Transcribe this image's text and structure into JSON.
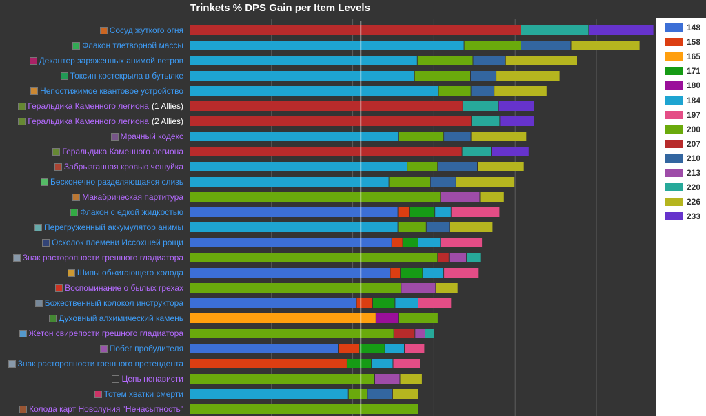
{
  "chart_data": {
    "type": "bar",
    "title": "Trinkets % DPS Gain per Item Levels",
    "xlabel": "",
    "ylabel": "",
    "xlim": [
      0,
      11
    ],
    "legend_position": "right",
    "item_levels": [
      "148",
      "158",
      "165",
      "171",
      "180",
      "184",
      "197",
      "200",
      "207",
      "210",
      "213",
      "220",
      "226",
      "233"
    ],
    "colors": {
      "148": "#3c6fd6",
      "158": "#dc3e12",
      "165": "#ff9f0e",
      "171": "#169b15",
      "180": "#9a0f9a",
      "184": "#1ea4d1",
      "197": "#e44d86",
      "200": "#6aaa0c",
      "207": "#b82b2b",
      "210": "#3366a0",
      "213": "#9e4ca8",
      "220": "#27a99a",
      "226": "#b5b51f",
      "233": "#6633cc"
    },
    "items": [
      {
        "name": "Сосуд жуткого огня",
        "epic": false,
        "icon_color": "#cc6622",
        "segments": [
          [
            "207",
            8.15
          ],
          [
            "220",
            1.67
          ],
          [
            "233",
            1.6
          ]
        ]
      },
      {
        "name": "Флакон тлетворной массы",
        "epic": false,
        "icon_color": "#33aa55",
        "segments": [
          [
            "184",
            6.75
          ],
          [
            "200",
            1.4
          ],
          [
            "210",
            1.23
          ],
          [
            "226",
            1.7
          ]
        ]
      },
      {
        "name": "Декантер заряженных анимой ветров",
        "epic": false,
        "icon_color": "#aa2266",
        "segments": [
          [
            "184",
            5.6
          ],
          [
            "200",
            1.37
          ],
          [
            "210",
            0.8
          ],
          [
            "226",
            1.77
          ]
        ]
      },
      {
        "name": "Токсин костекрыла в бутылке",
        "epic": false,
        "icon_color": "#229955",
        "segments": [
          [
            "184",
            5.53
          ],
          [
            "200",
            1.38
          ],
          [
            "210",
            0.63
          ],
          [
            "226",
            1.57
          ]
        ]
      },
      {
        "name": "Непостижимое квантовое устройство",
        "epic": false,
        "icon_color": "#cc8833",
        "segments": [
          [
            "184",
            6.12
          ],
          [
            "200",
            0.8
          ],
          [
            "210",
            0.57
          ],
          [
            "226",
            1.3
          ]
        ]
      },
      {
        "name": "Геральдика Каменного легиона",
        "suffix": "(1 Allies)",
        "epic": true,
        "icon_color": "#668833",
        "segments": [
          [
            "207",
            6.72
          ],
          [
            "220",
            0.88
          ],
          [
            "233",
            0.88
          ]
        ]
      },
      {
        "name": "Геральдика Каменного легиона",
        "suffix": "(2 Allies)",
        "epic": true,
        "icon_color": "#668833",
        "segments": [
          [
            "207",
            6.93
          ],
          [
            "220",
            0.7
          ],
          [
            "233",
            0.85
          ]
        ]
      },
      {
        "name": "Мрачный кодекс",
        "epic": true,
        "icon_color": "#775588",
        "segments": [
          [
            "184",
            5.13
          ],
          [
            "200",
            1.12
          ],
          [
            "210",
            0.67
          ],
          [
            "226",
            1.37
          ]
        ]
      },
      {
        "name": "Геральдика Каменного легиона",
        "epic": true,
        "icon_color": "#668833",
        "segments": [
          [
            "207",
            6.7
          ],
          [
            "220",
            0.72
          ],
          [
            "233",
            0.93
          ]
        ]
      },
      {
        "name": "Забрызганная кровью чешуйка",
        "epic": true,
        "icon_color": "#aa4433",
        "segments": [
          [
            "184",
            5.35
          ],
          [
            "200",
            0.75
          ],
          [
            "210",
            0.98
          ],
          [
            "226",
            1.15
          ]
        ]
      },
      {
        "name": "Бесконечно разделяющаяся слизь",
        "epic": false,
        "icon_color": "#55bb66",
        "segments": [
          [
            "184",
            4.9
          ],
          [
            "200",
            1.02
          ],
          [
            "210",
            0.63
          ],
          [
            "226",
            1.45
          ]
        ]
      },
      {
        "name": "Макабрическая партитура",
        "epic": true,
        "icon_color": "#bb7733",
        "segments": [
          [
            "200",
            6.17
          ],
          [
            "213",
            0.97
          ],
          [
            "226",
            0.6
          ]
        ]
      },
      {
        "name": "Флакон с едкой жидкостью",
        "epic": false,
        "icon_color": "#33aa44",
        "segments": [
          [
            "148",
            5.12
          ],
          [
            "158",
            0.28
          ],
          [
            "171",
            0.63
          ],
          [
            "184",
            0.4
          ],
          [
            "197",
            1.2
          ]
        ]
      },
      {
        "name": "Перегруженный аккумулятор анимы",
        "epic": false,
        "icon_color": "#66aaaa",
        "segments": [
          [
            "184",
            5.12
          ],
          [
            "200",
            0.7
          ],
          [
            "210",
            0.57
          ],
          [
            "226",
            1.07
          ]
        ]
      },
      {
        "name": "Осколок племени Иссохшей рощи",
        "epic": false,
        "icon_color": "#334477",
        "segments": [
          [
            "148",
            4.97
          ],
          [
            "158",
            0.27
          ],
          [
            "171",
            0.38
          ],
          [
            "184",
            0.55
          ],
          [
            "197",
            1.03
          ]
        ]
      },
      {
        "name": "Знак расторопности грешного гладиатора",
        "epic": true,
        "icon_color": "#8899aa",
        "segments": [
          [
            "200",
            6.1
          ],
          [
            "207",
            0.28
          ],
          [
            "213",
            0.43
          ],
          [
            "220",
            0.35
          ]
        ]
      },
      {
        "name": "Шипы обжигающего холода",
        "epic": false,
        "icon_color": "#cc9933",
        "segments": [
          [
            "148",
            4.93
          ],
          [
            "158",
            0.25
          ],
          [
            "171",
            0.55
          ],
          [
            "184",
            0.52
          ],
          [
            "197",
            0.87
          ]
        ]
      },
      {
        "name": "Воспоминание о былых грехах",
        "epic": true,
        "icon_color": "#cc3322",
        "segments": [
          [
            "200",
            5.2
          ],
          [
            "213",
            0.85
          ],
          [
            "226",
            0.55
          ]
        ]
      },
      {
        "name": "Божественный колокол инструктора",
        "epic": false,
        "icon_color": "#778899",
        "segments": [
          [
            "148",
            4.1
          ],
          [
            "158",
            0.4
          ],
          [
            "171",
            0.55
          ],
          [
            "184",
            0.57
          ],
          [
            "197",
            0.82
          ]
        ]
      },
      {
        "name": "Духовный алхимический камень",
        "epic": false,
        "icon_color": "#448833",
        "segments": [
          [
            "165",
            4.58
          ],
          [
            "180",
            0.55
          ],
          [
            "200",
            0.98
          ]
        ]
      },
      {
        "name": "Жетон свирепости грешного гладиатора",
        "epic": true,
        "icon_color": "#5599cc",
        "segments": [
          [
            "200",
            5.02
          ],
          [
            "207",
            0.52
          ],
          [
            "213",
            0.25
          ],
          [
            "220",
            0.22
          ]
        ]
      },
      {
        "name": "Побег пробудителя",
        "epic": false,
        "icon_color": "#9955aa",
        "segments": [
          [
            "148",
            3.65
          ],
          [
            "158",
            0.52
          ],
          [
            "171",
            0.63
          ],
          [
            "184",
            0.48
          ],
          [
            "197",
            0.5
          ]
        ]
      },
      {
        "name": "Знак расторопности грешного претендента",
        "epic": false,
        "icon_color": "#8899aa",
        "segments": [
          [
            "158",
            3.87
          ],
          [
            "171",
            0.6
          ],
          [
            "184",
            0.53
          ],
          [
            "197",
            0.67
          ]
        ]
      },
      {
        "name": "Цепь ненависти",
        "epic": true,
        "icon_color": "#333333",
        "segments": [
          [
            "200",
            4.55
          ],
          [
            "213",
            0.62
          ],
          [
            "226",
            0.55
          ]
        ]
      },
      {
        "name": "Тотем хватки смерти",
        "epic": false,
        "icon_color": "#cc3366",
        "segments": [
          [
            "184",
            3.9
          ],
          [
            "200",
            0.47
          ],
          [
            "210",
            0.62
          ],
          [
            "226",
            0.63
          ]
        ]
      },
      {
        "name": "Колода карт Новолуния \"Ненасытность\"",
        "epic": true,
        "icon_color": "#995533",
        "segments": [
          [
            "200",
            5.62
          ]
        ]
      }
    ]
  }
}
